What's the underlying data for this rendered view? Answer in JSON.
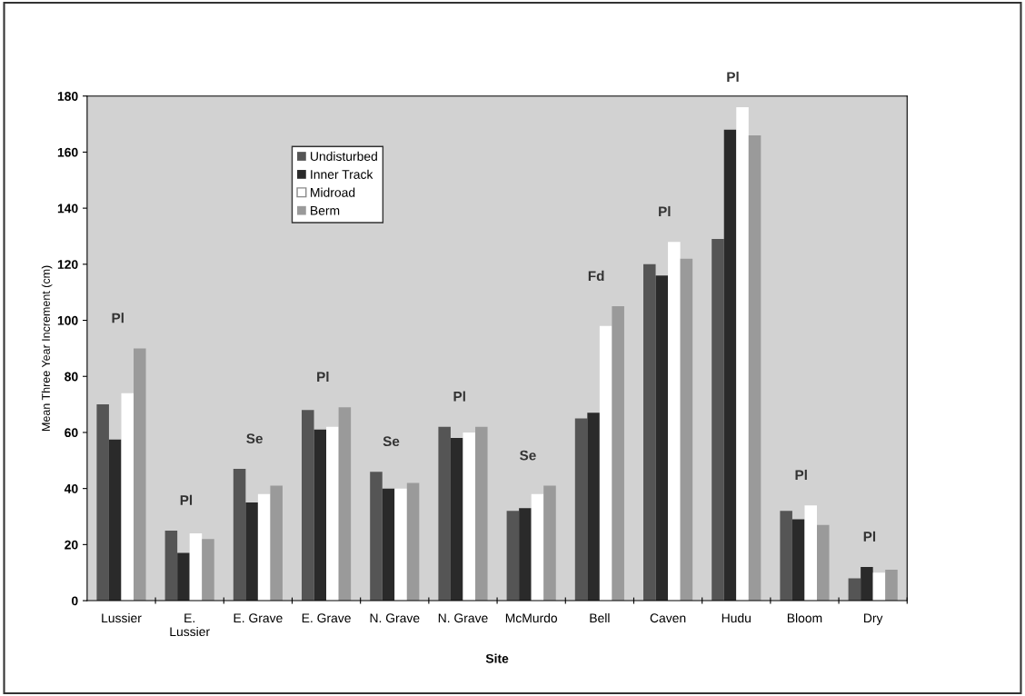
{
  "chart_data": {
    "type": "bar",
    "xlabel": "Site",
    "ylabel": "Mean Three Year Increment (cm)",
    "categories": [
      "Lussier",
      "E.\nLussier",
      "E. Grave",
      "E. Grave",
      "N. Grave",
      "N. Grave",
      "McMurdo",
      "Bell",
      "Caven",
      "Hudu",
      "Bloom",
      "Dry"
    ],
    "series": [
      {
        "name": "Undisturbed",
        "color": "#555555",
        "values": [
          70,
          25,
          47,
          68,
          46,
          62,
          32,
          65,
          120,
          129,
          32,
          8
        ]
      },
      {
        "name": "Inner Track",
        "color": "#2a2a2a",
        "values": [
          57.5,
          17,
          35,
          61,
          40,
          58,
          33,
          67,
          116,
          168,
          29,
          12
        ]
      },
      {
        "name": "Midroad",
        "color": "#ffffff",
        "values": [
          74,
          24,
          38,
          62,
          40,
          60,
          38,
          98,
          128,
          176,
          34,
          10
        ]
      },
      {
        "name": "Berm",
        "color": "#9a9a9a",
        "values": [
          90,
          22,
          41,
          69,
          42,
          62,
          41,
          105,
          122,
          166,
          27,
          11
        ]
      }
    ],
    "ylim": [
      0,
      180
    ],
    "yticks": [
      0,
      20,
      40,
      60,
      80,
      100,
      120,
      140,
      160,
      180
    ],
    "grid": false,
    "legend": "top left",
    "annotations": [
      "Pl",
      "Pl",
      "Se",
      "Pl",
      "Se",
      "Pl",
      "Se",
      "Fd",
      "Pl",
      "Pl",
      "Pl",
      "Pl"
    ]
  }
}
